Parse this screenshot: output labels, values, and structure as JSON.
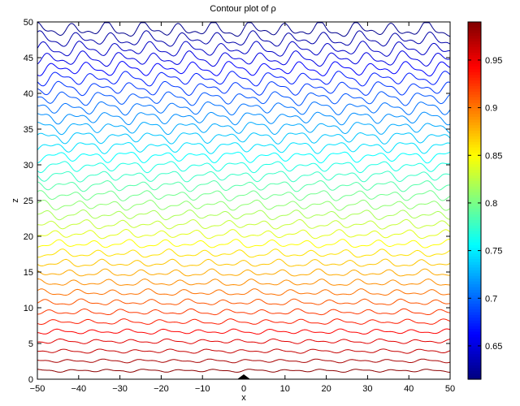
{
  "chart_data": {
    "type": "contour",
    "title": "Contour plot of ρ",
    "xlabel": "x",
    "ylabel": "z",
    "xlim": [
      -50,
      50
    ],
    "ylim": [
      0,
      50
    ],
    "xticks": [
      -50,
      -40,
      -30,
      -20,
      -10,
      0,
      10,
      20,
      30,
      40,
      50
    ],
    "yticks": [
      0,
      5,
      10,
      15,
      20,
      25,
      30,
      35,
      40,
      45,
      50
    ],
    "colorbar": {
      "range": [
        0.615,
        0.99
      ],
      "ticks": [
        "0.65",
        "0.7",
        "0.75",
        "0.8",
        "0.85",
        "0.9",
        "0.95"
      ],
      "colormap": "jet"
    },
    "levels": {
      "count": 36,
      "z_bottom": 1.2,
      "z_top": 48.9,
      "value_bottom": 0.985,
      "value_top": 0.62
    },
    "obstacle": {
      "x": 0,
      "z": 0,
      "shape": "small triangle at base"
    }
  }
}
